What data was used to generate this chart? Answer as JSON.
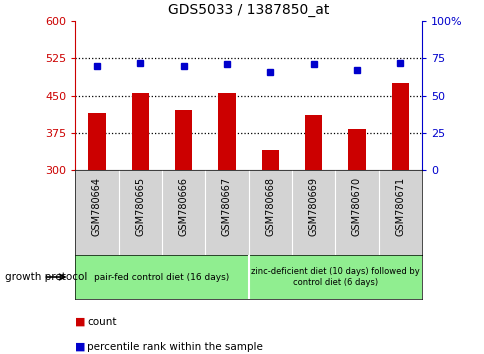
{
  "title": "GDS5033 / 1387850_at",
  "samples": [
    "GSM780664",
    "GSM780665",
    "GSM780666",
    "GSM780667",
    "GSM780668",
    "GSM780669",
    "GSM780670",
    "GSM780671"
  ],
  "count_values": [
    415,
    455,
    420,
    455,
    340,
    410,
    383,
    475
  ],
  "percentile_values": [
    70,
    72,
    70,
    71,
    66,
    71,
    67,
    72
  ],
  "ylim_left": [
    300,
    600
  ],
  "ylim_right": [
    0,
    100
  ],
  "yticks_left": [
    300,
    375,
    450,
    525,
    600
  ],
  "yticks_right": [
    0,
    25,
    50,
    75,
    100
  ],
  "bar_color": "#cc0000",
  "dot_color": "#0000cc",
  "bar_width": 0.4,
  "group1_label": "pair-fed control diet (16 days)",
  "group2_label": "zinc-deficient diet (10 days) followed by\ncontrol diet (6 days)",
  "group1_color": "#90ee90",
  "group2_color": "#90ee90",
  "group1_indices": [
    0,
    1,
    2,
    3
  ],
  "group2_indices": [
    4,
    5,
    6,
    7
  ],
  "xlabel_color": "#cc0000",
  "ylabel_right_color": "#0000cc",
  "grid_style": "dotted",
  "bg_plot": "#ffffff",
  "bg_xtick": "#d3d3d3"
}
